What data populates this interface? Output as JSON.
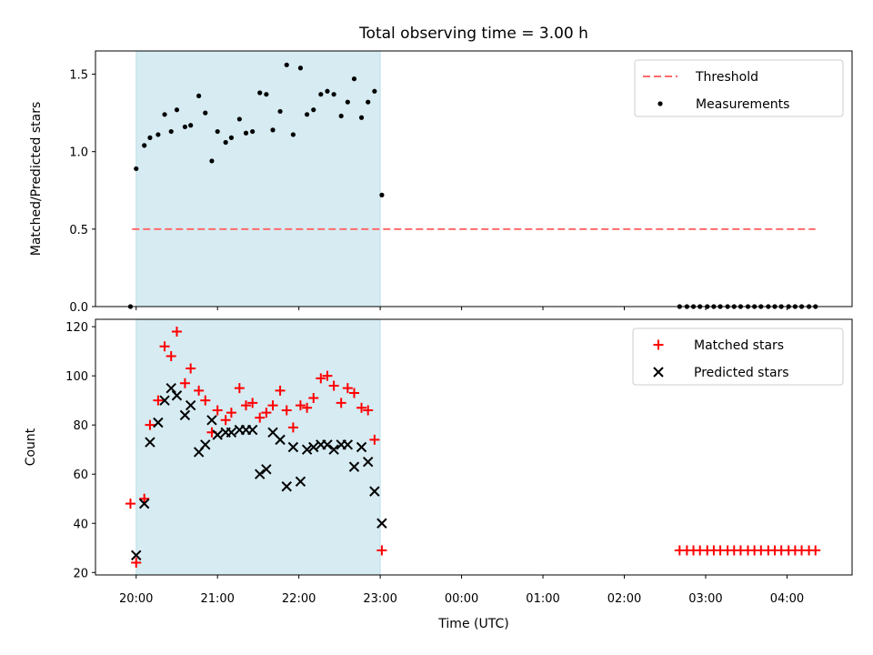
{
  "chart_data": {
    "title": "Total observing time = 3.00 h",
    "xlabel": "Time (UTC)",
    "x_unit": "hours since 20:00 UTC (tick labels shown as clock times)",
    "xlim": [
      -0.5,
      8.8
    ],
    "xticks": [
      {
        "x": 0,
        "label": "20:00"
      },
      {
        "x": 1,
        "label": "21:00"
      },
      {
        "x": 2,
        "label": "22:00"
      },
      {
        "x": 3,
        "label": "23:00"
      },
      {
        "x": 4,
        "label": "00:00"
      },
      {
        "x": 5,
        "label": "01:00"
      },
      {
        "x": 6,
        "label": "02:00"
      },
      {
        "x": 7,
        "label": "03:00"
      },
      {
        "x": 8,
        "label": "04:00"
      }
    ],
    "shaded_span": {
      "x0": 0,
      "x1": 3,
      "color": "#add8e6"
    },
    "panels": [
      {
        "type": "scatter",
        "ylabel": "Matched/Predicted stars",
        "ylim": [
          0,
          1.65
        ],
        "yticks": [
          "0.0",
          "0.5",
          "1.0",
          "1.5"
        ],
        "ytick_values": [
          0,
          0.5,
          1.0,
          1.5
        ],
        "legend_position": "upper right",
        "threshold": {
          "name": "Threshold",
          "y": 0.5,
          "x_from": -0.05,
          "x_to": 8.35,
          "color": "#ff6b6b"
        },
        "series": [
          {
            "name": "Measurements",
            "marker": "dot",
            "color": "#000000",
            "points": [
              [
                -0.07,
                0.0
              ],
              [
                0.0,
                0.89
              ],
              [
                0.1,
                1.04
              ],
              [
                0.17,
                1.09
              ],
              [
                0.27,
                1.11
              ],
              [
                0.35,
                1.24
              ],
              [
                0.43,
                1.13
              ],
              [
                0.5,
                1.27
              ],
              [
                0.6,
                1.16
              ],
              [
                0.67,
                1.17
              ],
              [
                0.77,
                1.36
              ],
              [
                0.85,
                1.25
              ],
              [
                0.93,
                0.94
              ],
              [
                1.0,
                1.13
              ],
              [
                1.1,
                1.06
              ],
              [
                1.17,
                1.09
              ],
              [
                1.27,
                1.21
              ],
              [
                1.35,
                1.12
              ],
              [
                1.43,
                1.13
              ],
              [
                1.52,
                1.38
              ],
              [
                1.6,
                1.37
              ],
              [
                1.68,
                1.14
              ],
              [
                1.77,
                1.26
              ],
              [
                1.85,
                1.56
              ],
              [
                1.93,
                1.11
              ],
              [
                2.02,
                1.54
              ],
              [
                2.1,
                1.24
              ],
              [
                2.18,
                1.27
              ],
              [
                2.27,
                1.37
              ],
              [
                2.35,
                1.39
              ],
              [
                2.43,
                1.37
              ],
              [
                2.52,
                1.23
              ],
              [
                2.6,
                1.32
              ],
              [
                2.68,
                1.47
              ],
              [
                2.77,
                1.22
              ],
              [
                2.85,
                1.32
              ],
              [
                2.93,
                1.39
              ],
              [
                3.02,
                0.72
              ],
              [
                6.68,
                0.0
              ],
              [
                6.77,
                0.0
              ],
              [
                6.85,
                0.0
              ],
              [
                6.93,
                0.0
              ],
              [
                7.02,
                0.0
              ],
              [
                7.1,
                0.0
              ],
              [
                7.18,
                0.0
              ],
              [
                7.27,
                0.0
              ],
              [
                7.35,
                0.0
              ],
              [
                7.43,
                0.0
              ],
              [
                7.52,
                0.0
              ],
              [
                7.6,
                0.0
              ],
              [
                7.68,
                0.0
              ],
              [
                7.77,
                0.0
              ],
              [
                7.85,
                0.0
              ],
              [
                7.93,
                0.0
              ],
              [
                8.02,
                0.0
              ],
              [
                8.1,
                0.0
              ],
              [
                8.18,
                0.0
              ],
              [
                8.27,
                0.0
              ],
              [
                8.35,
                0.0
              ]
            ]
          }
        ]
      },
      {
        "type": "scatter",
        "ylabel": "Count",
        "ylim": [
          19,
          123
        ],
        "yticks": [
          "20",
          "40",
          "60",
          "80",
          "100",
          "120"
        ],
        "ytick_values": [
          20,
          40,
          60,
          80,
          100,
          120
        ],
        "legend_position": "upper right",
        "series": [
          {
            "name": "Matched stars",
            "marker": "plus",
            "color": "#ff0000",
            "points": [
              [
                -0.07,
                48
              ],
              [
                0.0,
                24
              ],
              [
                0.1,
                50
              ],
              [
                0.17,
                80
              ],
              [
                0.27,
                90
              ],
              [
                0.35,
                112
              ],
              [
                0.43,
                108
              ],
              [
                0.5,
                118
              ],
              [
                0.6,
                97
              ],
              [
                0.67,
                103
              ],
              [
                0.77,
                94
              ],
              [
                0.85,
                90
              ],
              [
                0.93,
                77
              ],
              [
                1.0,
                86
              ],
              [
                1.1,
                82
              ],
              [
                1.17,
                85
              ],
              [
                1.27,
                95
              ],
              [
                1.35,
                88
              ],
              [
                1.43,
                89
              ],
              [
                1.52,
                83
              ],
              [
                1.6,
                85
              ],
              [
                1.68,
                88
              ],
              [
                1.77,
                94
              ],
              [
                1.85,
                86
              ],
              [
                1.93,
                79
              ],
              [
                2.02,
                88
              ],
              [
                2.1,
                87
              ],
              [
                2.18,
                91
              ],
              [
                2.27,
                99
              ],
              [
                2.35,
                100
              ],
              [
                2.43,
                96
              ],
              [
                2.52,
                89
              ],
              [
                2.6,
                95
              ],
              [
                2.68,
                93
              ],
              [
                2.77,
                87
              ],
              [
                2.85,
                86
              ],
              [
                2.93,
                74
              ],
              [
                3.02,
                29
              ],
              [
                6.68,
                29
              ],
              [
                6.77,
                29
              ],
              [
                6.85,
                29
              ],
              [
                6.93,
                29
              ],
              [
                7.02,
                29
              ],
              [
                7.1,
                29
              ],
              [
                7.18,
                29
              ],
              [
                7.27,
                29
              ],
              [
                7.35,
                29
              ],
              [
                7.43,
                29
              ],
              [
                7.52,
                29
              ],
              [
                7.6,
                29
              ],
              [
                7.68,
                29
              ],
              [
                7.77,
                29
              ],
              [
                7.85,
                29
              ],
              [
                7.93,
                29
              ],
              [
                8.02,
                29
              ],
              [
                8.1,
                29
              ],
              [
                8.18,
                29
              ],
              [
                8.27,
                29
              ],
              [
                8.35,
                29
              ]
            ]
          },
          {
            "name": "Predicted stars",
            "marker": "x",
            "color": "#000000",
            "points": [
              [
                0.0,
                27
              ],
              [
                0.1,
                48
              ],
              [
                0.17,
                73
              ],
              [
                0.27,
                81
              ],
              [
                0.35,
                90
              ],
              [
                0.43,
                95
              ],
              [
                0.5,
                92
              ],
              [
                0.6,
                84
              ],
              [
                0.67,
                88
              ],
              [
                0.77,
                69
              ],
              [
                0.85,
                72
              ],
              [
                0.93,
                82
              ],
              [
                1.0,
                76
              ],
              [
                1.1,
                77
              ],
              [
                1.17,
                77
              ],
              [
                1.27,
                78
              ],
              [
                1.35,
                78
              ],
              [
                1.43,
                78
              ],
              [
                1.52,
                60
              ],
              [
                1.6,
                62
              ],
              [
                1.68,
                77
              ],
              [
                1.77,
                74
              ],
              [
                1.85,
                55
              ],
              [
                1.93,
                71
              ],
              [
                2.02,
                57
              ],
              [
                2.1,
                70
              ],
              [
                2.18,
                71
              ],
              [
                2.27,
                72
              ],
              [
                2.35,
                72
              ],
              [
                2.43,
                70
              ],
              [
                2.52,
                72
              ],
              [
                2.6,
                72
              ],
              [
                2.68,
                63
              ],
              [
                2.77,
                71
              ],
              [
                2.85,
                65
              ],
              [
                2.93,
                53
              ],
              [
                3.02,
                40
              ]
            ]
          }
        ]
      }
    ]
  }
}
